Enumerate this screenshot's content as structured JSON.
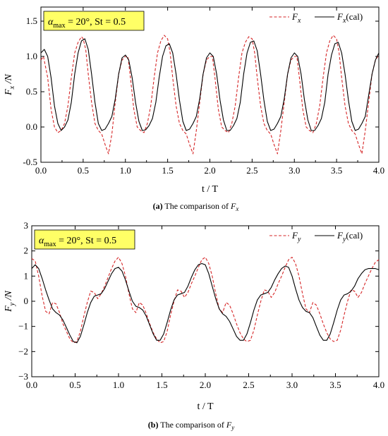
{
  "chart_data": [
    {
      "type": "line",
      "panel": "a",
      "caption": {
        "label": "(a)",
        "text": "The comparison of",
        "symbol": "F",
        "symbol_sub": "x"
      },
      "annotation": {
        "alpha": "α",
        "alpha_sub": "max",
        "rest": " = 20°, St = 0.5"
      },
      "xlabel": "t / T",
      "ylabel": {
        "main": "F",
        "sub": "x",
        "rest": " /N"
      },
      "xlim": [
        0,
        4
      ],
      "ylim": [
        -0.5,
        1.7
      ],
      "xticks": [
        "0.0",
        "0.5",
        "1.0",
        "1.5",
        "2.0",
        "2.5",
        "3.0",
        "3.5",
        "4.0"
      ],
      "yticks": [
        "-0.5",
        "0.0",
        "0.5",
        "1.0",
        "1.5"
      ],
      "ytick_values": [
        -0.5,
        0,
        0.5,
        1.0,
        1.5
      ],
      "legend_position": "top-right",
      "series": [
        {
          "name": "F",
          "name_sub": "x",
          "name_rest": "",
          "color": "#d62728",
          "style": "dashed",
          "x": [
            0.0,
            0.03,
            0.08,
            0.12,
            0.16,
            0.2,
            0.24,
            0.28,
            0.32,
            0.36,
            0.4,
            0.44,
            0.48,
            0.5,
            0.53,
            0.56,
            0.6,
            0.64,
            0.68,
            0.72,
            0.76,
            0.8,
            0.84,
            0.88,
            0.92,
            0.96,
            1.0,
            1.03,
            1.06,
            1.1,
            1.14,
            1.18,
            1.22,
            1.26,
            1.3,
            1.34,
            1.38,
            1.42,
            1.46,
            1.5,
            1.53,
            1.56,
            1.6,
            1.64,
            1.68,
            1.72,
            1.76,
            1.8,
            1.84,
            1.88,
            1.92,
            1.96,
            2.0,
            2.03,
            2.06,
            2.1,
            2.14,
            2.18,
            2.22,
            2.26,
            2.3,
            2.34,
            2.38,
            2.42,
            2.46,
            2.5,
            2.53,
            2.56,
            2.6,
            2.64,
            2.68,
            2.72,
            2.76,
            2.8,
            2.84,
            2.88,
            2.92,
            2.96,
            3.0,
            3.03,
            3.06,
            3.1,
            3.14,
            3.18,
            3.22,
            3.26,
            3.3,
            3.34,
            3.38,
            3.42,
            3.46,
            3.5,
            3.53,
            3.56,
            3.6,
            3.64,
            3.68,
            3.72,
            3.76,
            3.8,
            3.84,
            3.88,
            3.92,
            3.96,
            4.0
          ],
          "y": [
            0.95,
            1.0,
            0.7,
            0.25,
            0.0,
            -0.08,
            -0.05,
            0.05,
            0.3,
            0.7,
            1.05,
            1.2,
            1.28,
            1.25,
            1.1,
            0.75,
            0.35,
            0.05,
            -0.05,
            -0.1,
            -0.25,
            -0.38,
            -0.1,
            0.35,
            0.75,
            0.95,
            1.0,
            1.0,
            0.7,
            0.25,
            0.0,
            -0.05,
            -0.08,
            0.05,
            0.3,
            0.7,
            1.05,
            1.22,
            1.3,
            1.25,
            1.05,
            0.7,
            0.3,
            0.05,
            -0.05,
            -0.1,
            -0.25,
            -0.38,
            -0.05,
            0.35,
            0.75,
            0.95,
            1.0,
            1.0,
            0.7,
            0.25,
            0.0,
            -0.05,
            -0.08,
            0.05,
            0.3,
            0.7,
            1.05,
            1.2,
            1.28,
            1.25,
            1.05,
            0.7,
            0.3,
            0.05,
            -0.05,
            -0.1,
            -0.25,
            -0.38,
            -0.05,
            0.35,
            0.75,
            0.95,
            1.0,
            1.0,
            0.7,
            0.25,
            0.0,
            -0.05,
            -0.08,
            0.05,
            0.3,
            0.7,
            1.05,
            1.22,
            1.3,
            1.25,
            1.05,
            0.7,
            0.3,
            0.05,
            -0.05,
            -0.1,
            -0.25,
            -0.38,
            -0.05,
            0.35,
            0.75,
            0.95,
            1.02
          ]
        },
        {
          "name": "F",
          "name_sub": "x",
          "name_rest": "(cal)",
          "color": "#000000",
          "style": "solid",
          "x": [
            0.0,
            0.04,
            0.08,
            0.12,
            0.16,
            0.2,
            0.24,
            0.28,
            0.32,
            0.36,
            0.4,
            0.44,
            0.48,
            0.52,
            0.56,
            0.6,
            0.64,
            0.68,
            0.72,
            0.76,
            0.8,
            0.84,
            0.88,
            0.92,
            0.96,
            1.0,
            1.04,
            1.08,
            1.12,
            1.16,
            1.2,
            1.24,
            1.28,
            1.32,
            1.36,
            1.4,
            1.44,
            1.48,
            1.52,
            1.56,
            1.6,
            1.64,
            1.68,
            1.72,
            1.76,
            1.8,
            1.84,
            1.88,
            1.92,
            1.96,
            2.0,
            2.04,
            2.08,
            2.12,
            2.16,
            2.2,
            2.24,
            2.28,
            2.32,
            2.36,
            2.4,
            2.44,
            2.48,
            2.52,
            2.56,
            2.6,
            2.64,
            2.68,
            2.72,
            2.76,
            2.8,
            2.84,
            2.88,
            2.92,
            2.96,
            3.0,
            3.04,
            3.08,
            3.12,
            3.16,
            3.2,
            3.24,
            3.28,
            3.32,
            3.36,
            3.4,
            3.44,
            3.48,
            3.52,
            3.56,
            3.6,
            3.64,
            3.68,
            3.72,
            3.76,
            3.8,
            3.84,
            3.88,
            3.92,
            3.96,
            4.0
          ],
          "y": [
            1.05,
            1.1,
            1.0,
            0.7,
            0.3,
            0.05,
            -0.05,
            0.0,
            0.1,
            0.35,
            0.75,
            1.05,
            1.22,
            1.25,
            1.1,
            0.75,
            0.35,
            0.05,
            -0.05,
            -0.03,
            0.05,
            0.15,
            0.4,
            0.75,
            0.98,
            1.02,
            0.95,
            0.7,
            0.35,
            0.08,
            -0.05,
            -0.04,
            0.02,
            0.12,
            0.35,
            0.7,
            1.0,
            1.15,
            1.18,
            1.05,
            0.75,
            0.38,
            0.08,
            -0.05,
            -0.03,
            0.05,
            0.15,
            0.4,
            0.75,
            0.98,
            1.05,
            1.0,
            0.75,
            0.38,
            0.1,
            -0.05,
            -0.05,
            0.02,
            0.12,
            0.35,
            0.75,
            1.05,
            1.2,
            1.22,
            1.08,
            0.75,
            0.38,
            0.08,
            -0.05,
            -0.03,
            0.05,
            0.15,
            0.4,
            0.75,
            0.98,
            1.05,
            1.0,
            0.75,
            0.38,
            0.1,
            -0.05,
            -0.05,
            0.02,
            0.12,
            0.35,
            0.75,
            1.02,
            1.18,
            1.2,
            1.05,
            0.75,
            0.38,
            0.08,
            -0.05,
            -0.03,
            0.05,
            0.15,
            0.45,
            0.75,
            0.95,
            1.05
          ]
        }
      ]
    },
    {
      "type": "line",
      "panel": "b",
      "caption": {
        "label": "(b)",
        "text": "The comparison of",
        "symbol": "F",
        "symbol_sub": "y"
      },
      "annotation": {
        "alpha": "α",
        "alpha_sub": "max",
        "rest": " = 20°, St = 0.5"
      },
      "xlabel": "t / T",
      "ylabel": {
        "main": "F",
        "sub": "y",
        "rest": " /N"
      },
      "xlim": [
        0,
        4
      ],
      "ylim": [
        -3,
        3
      ],
      "xticks": [
        "0.0",
        "0.5",
        "1.0",
        "1.5",
        "2.0",
        "2.5",
        "3.0",
        "3.5",
        "4.0"
      ],
      "yticks": [
        "−3",
        "−2",
        "−1",
        "0",
        "1",
        "2",
        "3"
      ],
      "ytick_values": [
        -3,
        -2,
        -1,
        0,
        1,
        2,
        3
      ],
      "legend_position": "top-right",
      "series": [
        {
          "name": "F",
          "name_sub": "y",
          "name_rest": "",
          "color": "#d62728",
          "style": "dashed",
          "x": [
            0.0,
            0.04,
            0.08,
            0.12,
            0.16,
            0.2,
            0.24,
            0.28,
            0.32,
            0.36,
            0.4,
            0.44,
            0.48,
            0.52,
            0.56,
            0.6,
            0.64,
            0.68,
            0.72,
            0.76,
            0.8,
            0.84,
            0.88,
            0.92,
            0.96,
            1.0,
            1.04,
            1.08,
            1.12,
            1.16,
            1.2,
            1.24,
            1.28,
            1.32,
            1.36,
            1.4,
            1.44,
            1.48,
            1.52,
            1.56,
            1.6,
            1.64,
            1.68,
            1.72,
            1.76,
            1.8,
            1.84,
            1.88,
            1.92,
            1.96,
            2.0,
            2.04,
            2.08,
            2.12,
            2.16,
            2.2,
            2.24,
            2.28,
            2.32,
            2.36,
            2.4,
            2.44,
            2.48,
            2.52,
            2.56,
            2.6,
            2.64,
            2.68,
            2.72,
            2.76,
            2.8,
            2.84,
            2.88,
            2.92,
            2.96,
            3.0,
            3.04,
            3.08,
            3.12,
            3.16,
            3.2,
            3.24,
            3.28,
            3.32,
            3.36,
            3.4,
            3.44,
            3.48,
            3.52,
            3.56,
            3.6,
            3.64,
            3.68,
            3.72,
            3.76,
            3.8,
            3.84,
            3.88,
            3.92,
            3.96,
            4.0
          ],
          "y": [
            1.7,
            1.6,
            1.0,
            0.2,
            -0.4,
            -0.5,
            -0.05,
            -0.1,
            -0.45,
            -0.9,
            -1.2,
            -1.5,
            -1.65,
            -1.6,
            -1.2,
            -0.6,
            -0.05,
            0.4,
            0.35,
            0.1,
            0.3,
            0.6,
            0.95,
            1.3,
            1.6,
            1.75,
            1.5,
            1.0,
            0.3,
            -0.3,
            -0.45,
            -0.05,
            -0.15,
            -0.5,
            -0.9,
            -1.25,
            -1.5,
            -1.65,
            -1.6,
            -1.2,
            -0.55,
            0.0,
            0.45,
            0.4,
            0.15,
            0.35,
            0.7,
            1.0,
            1.35,
            1.65,
            1.75,
            1.5,
            1.0,
            0.3,
            -0.3,
            -0.45,
            -0.05,
            -0.15,
            -0.5,
            -0.9,
            -1.25,
            -1.5,
            -1.6,
            -1.55,
            -1.15,
            -0.55,
            0.0,
            0.45,
            0.4,
            0.15,
            0.35,
            0.7,
            1.0,
            1.35,
            1.65,
            1.75,
            1.5,
            1.0,
            0.3,
            -0.3,
            -0.45,
            -0.05,
            -0.15,
            -0.5,
            -0.9,
            -1.25,
            -1.5,
            -1.6,
            -1.55,
            -1.15,
            -0.55,
            0.0,
            0.45,
            0.4,
            0.15,
            0.35,
            0.7,
            1.0,
            1.3,
            1.55,
            1.65
          ]
        },
        {
          "name": "F",
          "name_sub": "y",
          "name_rest": "(cal)",
          "color": "#000000",
          "style": "solid",
          "x": [
            0.0,
            0.04,
            0.08,
            0.12,
            0.16,
            0.2,
            0.24,
            0.28,
            0.32,
            0.36,
            0.4,
            0.44,
            0.48,
            0.52,
            0.56,
            0.6,
            0.64,
            0.68,
            0.72,
            0.76,
            0.8,
            0.84,
            0.88,
            0.92,
            0.96,
            1.0,
            1.04,
            1.08,
            1.12,
            1.16,
            1.2,
            1.24,
            1.28,
            1.32,
            1.36,
            1.4,
            1.44,
            1.48,
            1.52,
            1.56,
            1.6,
            1.64,
            1.68,
            1.72,
            1.76,
            1.8,
            1.84,
            1.88,
            1.92,
            1.96,
            2.0,
            2.04,
            2.08,
            2.12,
            2.16,
            2.2,
            2.24,
            2.28,
            2.32,
            2.36,
            2.4,
            2.44,
            2.48,
            2.52,
            2.56,
            2.6,
            2.64,
            2.68,
            2.72,
            2.76,
            2.8,
            2.84,
            2.88,
            2.92,
            2.96,
            3.0,
            3.04,
            3.08,
            3.12,
            3.16,
            3.2,
            3.24,
            3.28,
            3.32,
            3.36,
            3.4,
            3.44,
            3.48,
            3.52,
            3.56,
            3.6,
            3.64,
            3.68,
            3.72,
            3.76,
            3.8,
            3.84,
            3.88,
            3.92,
            3.96,
            4.0
          ],
          "y": [
            1.3,
            1.45,
            1.3,
            0.9,
            0.45,
            0.05,
            -0.3,
            -0.45,
            -0.55,
            -0.75,
            -1.05,
            -1.35,
            -1.6,
            -1.65,
            -1.4,
            -0.95,
            -0.45,
            -0.05,
            0.2,
            0.25,
            0.3,
            0.5,
            0.8,
            1.1,
            1.3,
            1.35,
            1.2,
            0.85,
            0.4,
            0.0,
            -0.2,
            -0.25,
            -0.35,
            -0.6,
            -0.95,
            -1.3,
            -1.55,
            -1.55,
            -1.3,
            -0.85,
            -0.35,
            0.05,
            0.25,
            0.3,
            0.35,
            0.6,
            0.95,
            1.25,
            1.45,
            1.5,
            1.45,
            1.1,
            0.6,
            0.1,
            -0.3,
            -0.5,
            -0.6,
            -0.8,
            -1.1,
            -1.4,
            -1.55,
            -1.55,
            -1.3,
            -0.85,
            -0.35,
            0.05,
            0.25,
            0.3,
            0.35,
            0.55,
            0.85,
            1.1,
            1.3,
            1.4,
            1.35,
            1.0,
            0.5,
            0.05,
            -0.25,
            -0.4,
            -0.45,
            -0.65,
            -1.0,
            -1.35,
            -1.55,
            -1.55,
            -1.3,
            -0.85,
            -0.35,
            0.05,
            0.25,
            0.3,
            0.4,
            0.6,
            0.9,
            1.1,
            1.25,
            1.3,
            1.3,
            1.3,
            1.25
          ]
        }
      ]
    }
  ]
}
